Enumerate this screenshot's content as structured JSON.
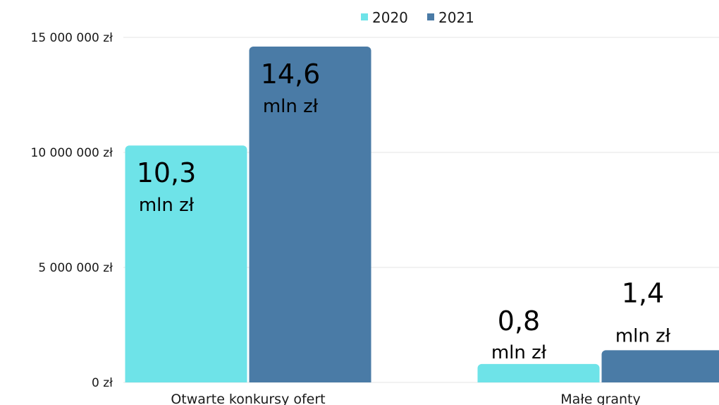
{
  "chart_data": {
    "type": "bar",
    "categories": [
      "Otwarte konkursy ofert",
      "Małe granty"
    ],
    "series": [
      {
        "name": "2020",
        "color": "#6ee3e8",
        "values": [
          10300000,
          800000
        ]
      },
      {
        "name": "2021",
        "color": "#4a7ba6",
        "values": [
          14600000,
          1400000
        ]
      }
    ],
    "ylim": [
      0,
      15000000
    ],
    "yticks": [
      {
        "value": 0,
        "label": "0 zł"
      },
      {
        "value": 5000000,
        "label": "5 000 000 zł"
      },
      {
        "value": 10000000,
        "label": "10 000 000 zł"
      },
      {
        "value": 15000000,
        "label": "15 000 000 zł"
      }
    ],
    "data_labels": [
      {
        "series": 0,
        "category": 0,
        "value": "10,3",
        "unit": "mln zł"
      },
      {
        "series": 1,
        "category": 0,
        "value": "14,6",
        "unit": "mln zł"
      },
      {
        "series": 0,
        "category": 1,
        "value": "0,8",
        "unit": "mln zł"
      },
      {
        "series": 1,
        "category": 1,
        "value": "1,4",
        "unit": "mln zł"
      }
    ],
    "legend": {
      "position": "top"
    },
    "grid": true
  }
}
